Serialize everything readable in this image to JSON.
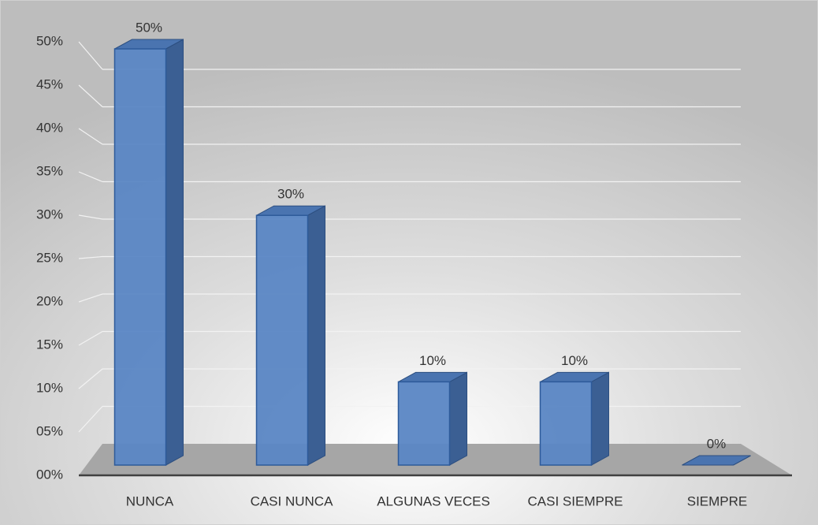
{
  "chart_data": {
    "type": "bar3d",
    "categories": [
      "NUNCA",
      "CASI NUNCA",
      "ALGUNAS VECES",
      "CASI SIEMPRE",
      "SIEMPRE"
    ],
    "values": [
      50,
      30,
      10,
      10,
      0
    ],
    "value_labels": [
      "50%",
      "30%",
      "10%",
      "10%",
      "0%"
    ],
    "color": "#5a86c4",
    "ylim": [
      0,
      50
    ],
    "yticks": [
      {
        "value": 0,
        "label": "00%"
      },
      {
        "value": 5,
        "label": "05%"
      },
      {
        "value": 10,
        "label": "10%"
      },
      {
        "value": 15,
        "label": "15%"
      },
      {
        "value": 20,
        "label": "20%"
      },
      {
        "value": 25,
        "label": "25%"
      },
      {
        "value": 30,
        "label": "30%"
      },
      {
        "value": 35,
        "label": "35%"
      },
      {
        "value": 40,
        "label": "40%"
      },
      {
        "value": 45,
        "label": "45%"
      },
      {
        "value": 50,
        "label": "50%"
      }
    ],
    "grid": true
  }
}
